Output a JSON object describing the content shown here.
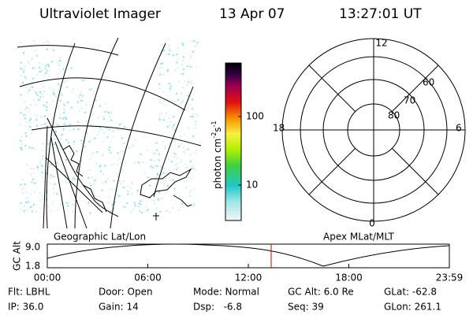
{
  "header": {
    "title": "Ultraviolet Imager",
    "date": "13 Apr 07",
    "time": "13:27:01 UT"
  },
  "colorbar": {
    "label": [
      "photon cm",
      "-2",
      "s",
      "-1"
    ],
    "ticks": [
      "100",
      "10"
    ]
  },
  "left_panel": {
    "label": "Geographic Lat/Lon"
  },
  "right_panel": {
    "label": "Apex MLat/MLT",
    "mlt": [
      "12",
      "18",
      "6",
      "0"
    ],
    "mlat": [
      "60",
      "70",
      "80"
    ]
  },
  "altitude": {
    "axis_label": "GC Alt",
    "yticks": [
      "9.0",
      "1.8"
    ],
    "xticks": [
      "00:00",
      "06:00",
      "12:00",
      "18:00",
      "23:59"
    ]
  },
  "info": [
    [
      "Flt: LBHL",
      "Door: Open",
      "Mode: Normal",
      "GC Alt: 6.0 Re",
      "GLat: -62.8"
    ],
    [
      "IP: 36.0",
      "Gain: 14",
      "Dsp:   -6.8",
      "Seq: 39",
      "GLon: 261.1"
    ]
  ]
}
